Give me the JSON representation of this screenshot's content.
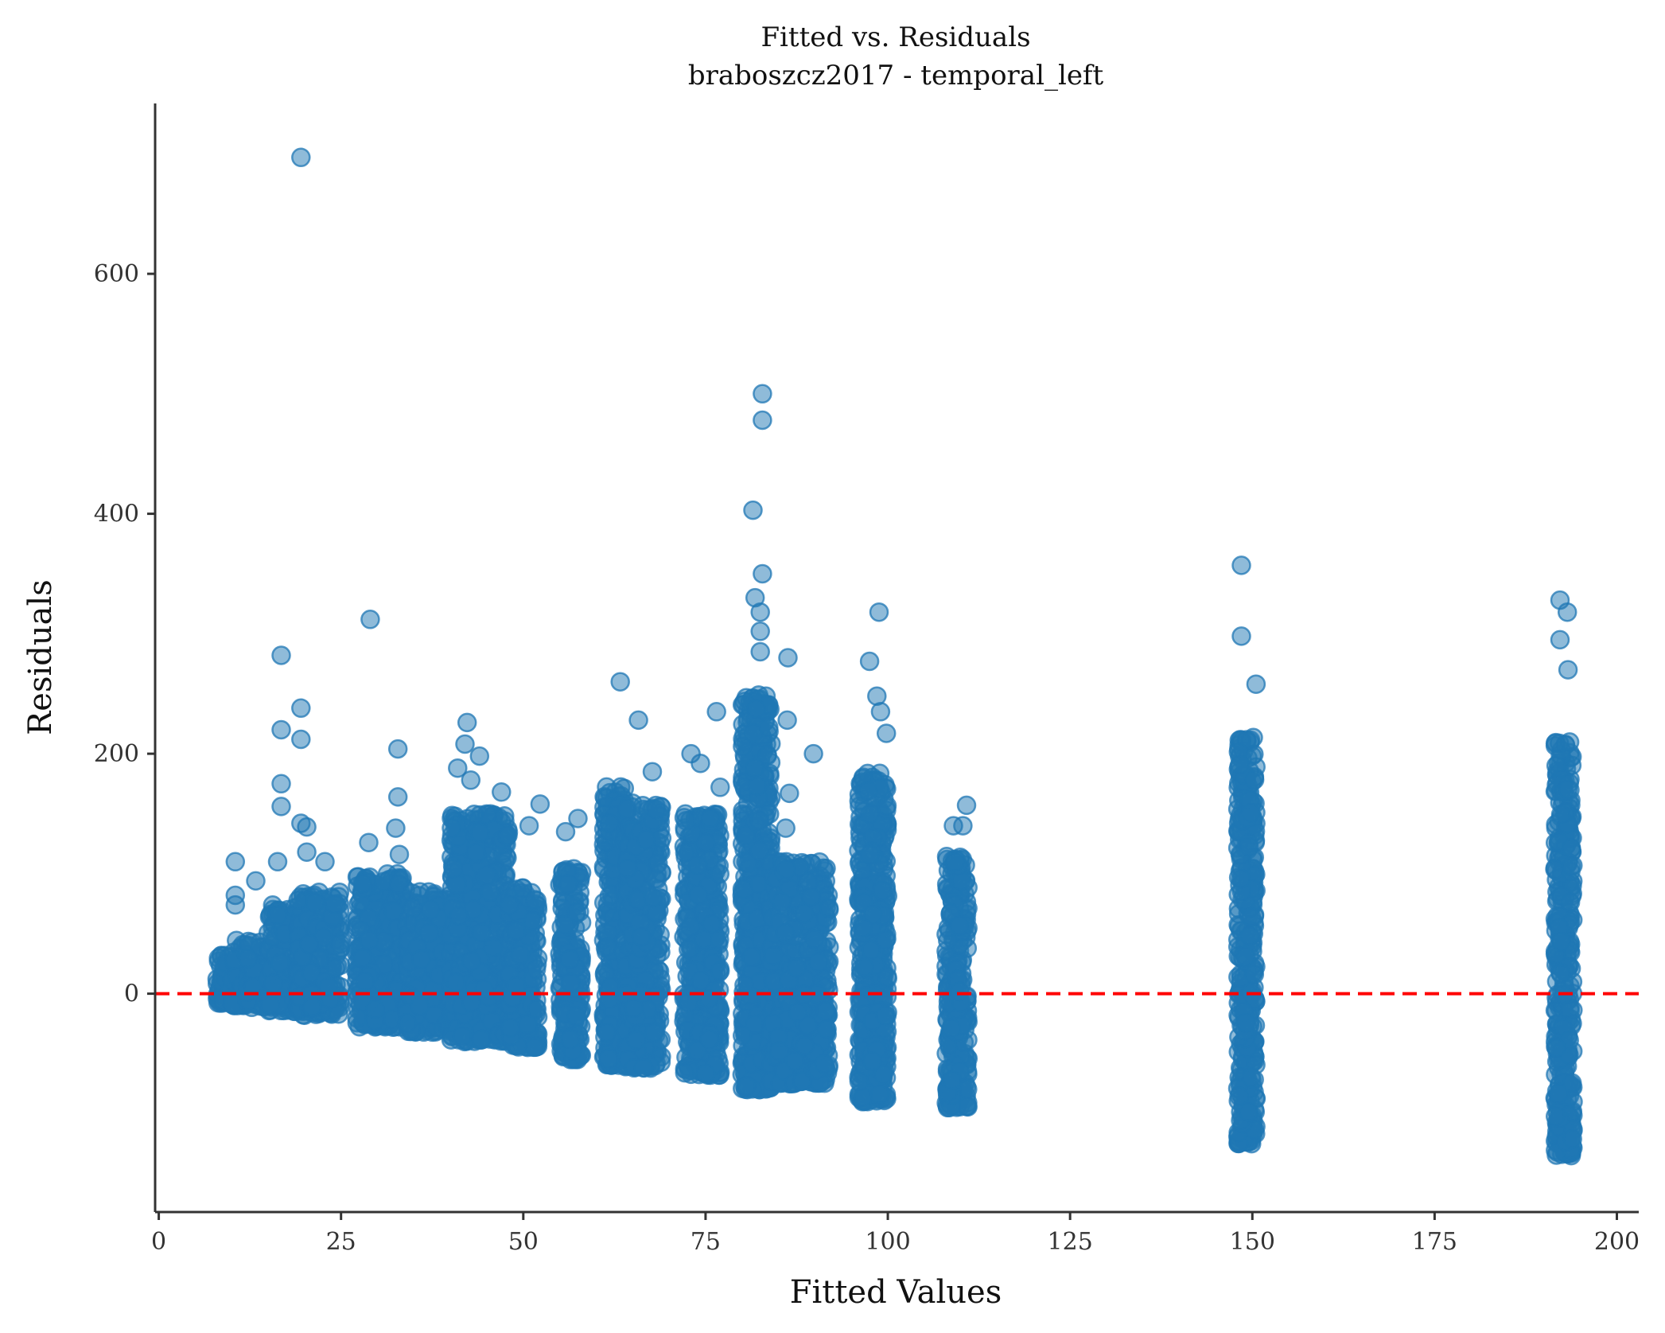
{
  "chart_data": {
    "type": "scatter",
    "title": "Fitted vs. Residuals",
    "subtitle": "braboszcz2017 - temporal_left",
    "xlabel": "Fitted Values",
    "ylabel": "Residuals",
    "xlim": [
      -0.5,
      203
    ],
    "ylim": [
      -182,
      742
    ],
    "xticks": [
      0,
      25,
      50,
      75,
      100,
      125,
      150,
      175,
      200
    ],
    "yticks": [
      0,
      200,
      400,
      600
    ],
    "grid": false,
    "legend": "none",
    "colors": {
      "points": "#1f77b4",
      "reference_line": "#ff0000",
      "axis": "#333333"
    },
    "reference_line": {
      "y": 0,
      "style": "dashed"
    },
    "point_clusters": [
      {
        "x": [
          8,
          10
        ],
        "ymin": -8,
        "ymax": 32
      },
      {
        "x": [
          10,
          12
        ],
        "ymin": -10,
        "ymax": 45
      },
      {
        "x": [
          12,
          15
        ],
        "ymin": -12,
        "ymax": 45
      },
      {
        "x": [
          15,
          19
        ],
        "ymin": -15,
        "ymax": 75
      },
      {
        "x": [
          19,
          25
        ],
        "ymin": -18,
        "ymax": 85
      },
      {
        "x": [
          27,
          34
        ],
        "ymin": -28,
        "ymax": 100
      },
      {
        "x": [
          34,
          40
        ],
        "ymin": -32,
        "ymax": 85
      },
      {
        "x": [
          40,
          48
        ],
        "ymin": -40,
        "ymax": 150
      },
      {
        "x": [
          48,
          52
        ],
        "ymin": -45,
        "ymax": 90
      },
      {
        "x": [
          55,
          58
        ],
        "ymin": -55,
        "ymax": 105
      },
      {
        "x": [
          61,
          64
        ],
        "ymin": -60,
        "ymax": 175
      },
      {
        "x": [
          64,
          69
        ],
        "ymin": -62,
        "ymax": 160
      },
      {
        "x": [
          72,
          77
        ],
        "ymin": -68,
        "ymax": 150
      },
      {
        "x": [
          80,
          84
        ],
        "ymin": -80,
        "ymax": 250
      },
      {
        "x": [
          84,
          92
        ],
        "ymin": -75,
        "ymax": 110
      },
      {
        "x": [
          96,
          100
        ],
        "ymin": -90,
        "ymax": 185
      },
      {
        "x": [
          108,
          111
        ],
        "ymin": -95,
        "ymax": 115
      },
      {
        "x": [
          148,
          150.5
        ],
        "ymin": -125,
        "ymax": 215
      },
      {
        "x": [
          191.5,
          194
        ],
        "ymin": -135,
        "ymax": 210
      }
    ],
    "outliers": [
      {
        "x": 19.5,
        "y": 697
      },
      {
        "x": 82.8,
        "y": 500
      },
      {
        "x": 82.8,
        "y": 478
      },
      {
        "x": 81.5,
        "y": 403
      },
      {
        "x": 148.5,
        "y": 357
      },
      {
        "x": 82.8,
        "y": 350
      },
      {
        "x": 81.8,
        "y": 330
      },
      {
        "x": 82.5,
        "y": 318
      },
      {
        "x": 29,
        "y": 312
      },
      {
        "x": 192.2,
        "y": 328
      },
      {
        "x": 193.2,
        "y": 318
      },
      {
        "x": 98.8,
        "y": 318
      },
      {
        "x": 82.5,
        "y": 302
      },
      {
        "x": 148.5,
        "y": 298
      },
      {
        "x": 192.2,
        "y": 295
      },
      {
        "x": 16.8,
        "y": 282
      },
      {
        "x": 86.3,
        "y": 280
      },
      {
        "x": 97.5,
        "y": 277
      },
      {
        "x": 82.5,
        "y": 285
      },
      {
        "x": 193.3,
        "y": 270
      },
      {
        "x": 63.3,
        "y": 260
      },
      {
        "x": 150.5,
        "y": 258
      },
      {
        "x": 98.5,
        "y": 248
      },
      {
        "x": 19.5,
        "y": 238
      },
      {
        "x": 76.5,
        "y": 235
      },
      {
        "x": 99.0,
        "y": 235
      },
      {
        "x": 65.8,
        "y": 228
      },
      {
        "x": 86.2,
        "y": 228
      },
      {
        "x": 42.3,
        "y": 226
      },
      {
        "x": 16.8,
        "y": 220
      },
      {
        "x": 99.8,
        "y": 217
      },
      {
        "x": 19.5,
        "y": 212
      },
      {
        "x": 42.0,
        "y": 208
      },
      {
        "x": 32.8,
        "y": 204
      },
      {
        "x": 73.0,
        "y": 200
      },
      {
        "x": 89.8,
        "y": 200
      },
      {
        "x": 44.0,
        "y": 198
      },
      {
        "x": 74.3,
        "y": 192
      },
      {
        "x": 41.0,
        "y": 188
      },
      {
        "x": 67.7,
        "y": 185
      },
      {
        "x": 42.8,
        "y": 178
      },
      {
        "x": 16.8,
        "y": 175
      },
      {
        "x": 77.0,
        "y": 172
      },
      {
        "x": 86.5,
        "y": 167
      },
      {
        "x": 47.0,
        "y": 168
      },
      {
        "x": 32.8,
        "y": 164
      },
      {
        "x": 16.8,
        "y": 156
      },
      {
        "x": 52.3,
        "y": 158
      },
      {
        "x": 110.8,
        "y": 157
      },
      {
        "x": 57.5,
        "y": 146
      },
      {
        "x": 19.5,
        "y": 142
      },
      {
        "x": 20.3,
        "y": 139
      },
      {
        "x": 110.3,
        "y": 140
      },
      {
        "x": 109.0,
        "y": 140
      },
      {
        "x": 50.8,
        "y": 140
      },
      {
        "x": 32.5,
        "y": 138
      },
      {
        "x": 55.8,
        "y": 135
      },
      {
        "x": 86.0,
        "y": 138
      },
      {
        "x": 61.8,
        "y": 142
      },
      {
        "x": 28.8,
        "y": 126
      },
      {
        "x": 33.0,
        "y": 116
      },
      {
        "x": 20.3,
        "y": 118
      },
      {
        "x": 16.3,
        "y": 110
      },
      {
        "x": 10.5,
        "y": 110
      },
      {
        "x": 22.8,
        "y": 110
      },
      {
        "x": 13.3,
        "y": 94
      },
      {
        "x": 10.5,
        "y": 82
      },
      {
        "x": 10.5,
        "y": 74
      },
      {
        "x": 108.8,
        "y": -72
      }
    ]
  }
}
